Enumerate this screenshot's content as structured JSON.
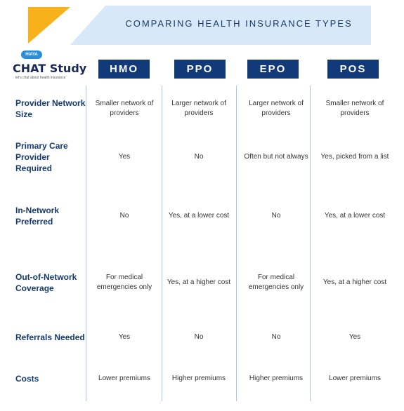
{
  "header": {
    "title": "COMPARING HEALTH INSURANCE TYPES"
  },
  "logo": {
    "badge": "HIAYA",
    "name": "CHAT Study",
    "tagline": "let's chat about health insurance"
  },
  "table": {
    "columns": [
      "HMO",
      "PPO",
      "EPO",
      "POS"
    ],
    "rows": [
      {
        "label": "Provider Network Size",
        "cells": [
          "Smaller network of providers",
          "Larger network of providers",
          "Larger network of providers",
          "Smaller network of providers"
        ]
      },
      {
        "label": "Primary Care Provider Required",
        "cells": [
          "Yes",
          "No",
          "Often but not always",
          "Yes, picked from a list"
        ]
      },
      {
        "label": "In-Network Preferred",
        "cells": [
          "No",
          "Yes, at a lower cost",
          "No",
          "Yes, at a lower cost"
        ]
      },
      {
        "label": "Out-of-Network Coverage",
        "cells": [
          "For medical emergencies only",
          "Yes, at a higher cost",
          "For medical emergencies only",
          "Yes, at a higher cost"
        ]
      },
      {
        "label": "Referrals Needed",
        "cells": [
          "Yes",
          "No",
          "No",
          "Yes"
        ]
      },
      {
        "label": "Costs",
        "cells": [
          "Lower premiums",
          "Higher premiums",
          "Higher premiums",
          "Lower premiums"
        ]
      }
    ]
  }
}
